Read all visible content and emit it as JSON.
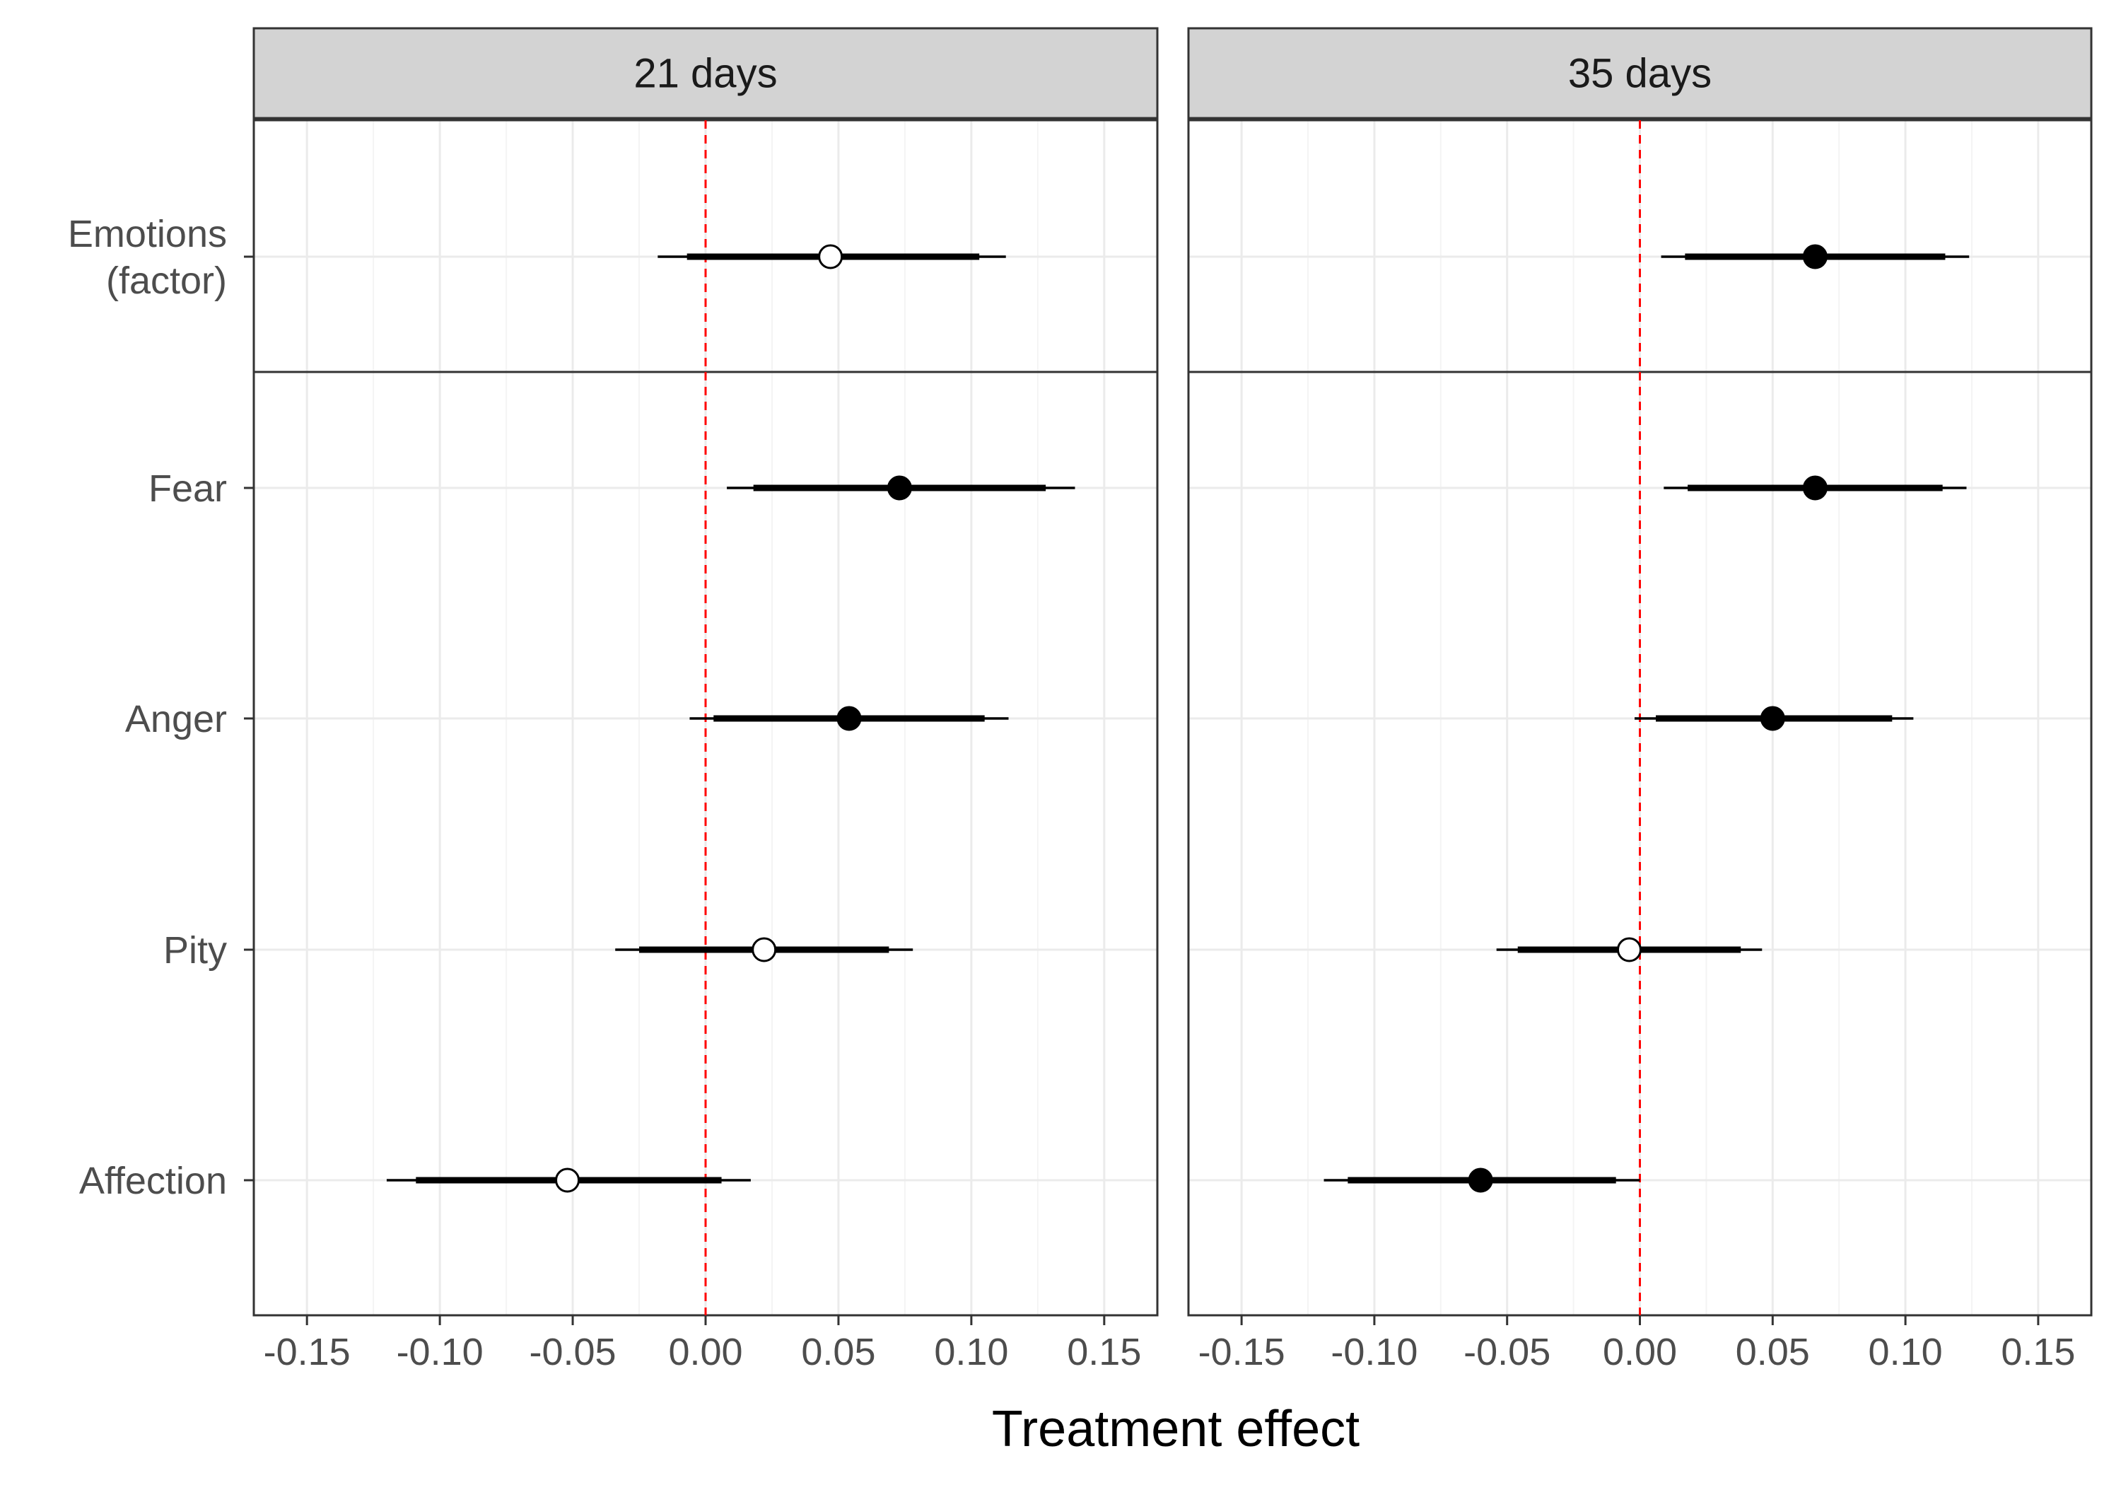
{
  "chart_data": {
    "type": "forest",
    "xlabel": "Treatment effect",
    "xlim": [
      -0.17,
      0.17
    ],
    "xticks": [
      -0.15,
      -0.1,
      -0.05,
      0.0,
      0.05,
      0.1,
      0.15
    ],
    "xtick_labels": [
      "-0.15",
      "-0.10",
      "-0.05",
      "0.00",
      "0.05",
      "0.10",
      "0.15"
    ],
    "reference_line": {
      "x": 0,
      "style": "dashed",
      "color": "#ff0000"
    },
    "grid": true,
    "categories": [
      "Emotions\n(factor)",
      "Fear",
      "Anger",
      "Pity",
      "Affection"
    ],
    "row_groups": [
      [
        "Emotions\n(factor)"
      ],
      [
        "Fear",
        "Anger",
        "Pity",
        "Affection"
      ]
    ],
    "marker_legend": {
      "filled": "black filled circle",
      "open": "white open circle"
    },
    "panels": [
      {
        "label": "21 days",
        "series": [
          {
            "category": "Emotions\n(factor)",
            "estimate": 0.047,
            "ci_inner": [
              -0.007,
              0.103
            ],
            "ci_outer": [
              -0.018,
              0.113
            ],
            "filled": false
          },
          {
            "category": "Fear",
            "estimate": 0.073,
            "ci_inner": [
              0.018,
              0.128
            ],
            "ci_outer": [
              0.008,
              0.139
            ],
            "filled": true
          },
          {
            "category": "Anger",
            "estimate": 0.054,
            "ci_inner": [
              0.003,
              0.105
            ],
            "ci_outer": [
              -0.006,
              0.114
            ],
            "filled": true
          },
          {
            "category": "Pity",
            "estimate": 0.022,
            "ci_inner": [
              -0.025,
              0.069
            ],
            "ci_outer": [
              -0.034,
              0.078
            ],
            "filled": false
          },
          {
            "category": "Affection",
            "estimate": -0.052,
            "ci_inner": [
              -0.109,
              0.006
            ],
            "ci_outer": [
              -0.12,
              0.017
            ],
            "filled": false
          }
        ]
      },
      {
        "label": "35 days",
        "series": [
          {
            "category": "Emotions\n(factor)",
            "estimate": 0.066,
            "ci_inner": [
              0.017,
              0.115
            ],
            "ci_outer": [
              0.008,
              0.124
            ],
            "filled": true
          },
          {
            "category": "Fear",
            "estimate": 0.066,
            "ci_inner": [
              0.018,
              0.114
            ],
            "ci_outer": [
              0.009,
              0.123
            ],
            "filled": true
          },
          {
            "category": "Anger",
            "estimate": 0.05,
            "ci_inner": [
              0.006,
              0.095
            ],
            "ci_outer": [
              -0.002,
              0.103
            ],
            "filled": true
          },
          {
            "category": "Pity",
            "estimate": -0.004,
            "ci_inner": [
              -0.046,
              0.038
            ],
            "ci_outer": [
              -0.054,
              0.046
            ],
            "filled": false
          },
          {
            "category": "Affection",
            "estimate": -0.06,
            "ci_inner": [
              -0.11,
              -0.009
            ],
            "ci_outer": [
              -0.119,
              0.0
            ],
            "filled": true
          }
        ]
      }
    ],
    "colors": {
      "strip_fill": "#d3d3d3",
      "panel_border": "#333333",
      "grid_major": "#ebebeb",
      "grid_minor": "#f4f4f4",
      "point_edge": "#000000",
      "filled_point": "#000000",
      "open_point": "#ffffff",
      "interval": "#000000",
      "reference_line": "#ff0000"
    }
  }
}
